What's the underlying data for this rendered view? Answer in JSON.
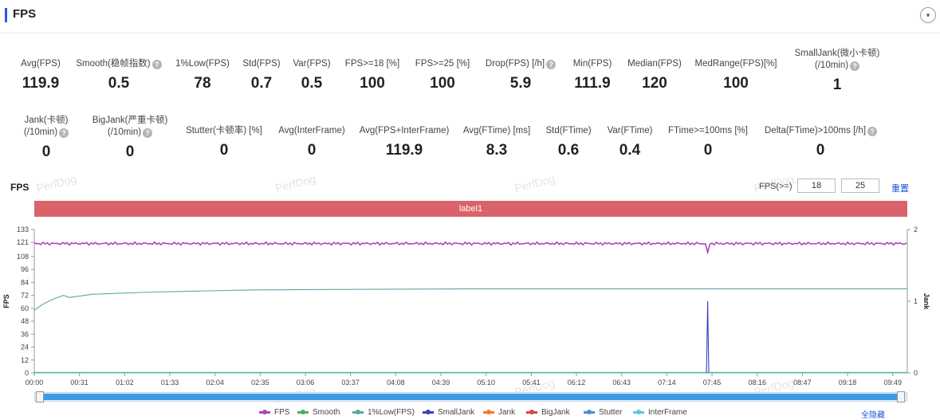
{
  "header": {
    "title": "FPS",
    "collapse_icon": "▾"
  },
  "metrics_row1": [
    {
      "label": "Avg(FPS)",
      "value": "119.9",
      "help": false
    },
    {
      "label": "Smooth(稳帧指数)",
      "value": "0.5",
      "help": true
    },
    {
      "label": "1%Low(FPS)",
      "value": "78",
      "help": false
    },
    {
      "label": "Std(FPS)",
      "value": "0.7",
      "help": false
    },
    {
      "label": "Var(FPS)",
      "value": "0.5",
      "help": false
    },
    {
      "label": "FPS>=18 [%]",
      "value": "100",
      "help": false
    },
    {
      "label": "FPS>=25 [%]",
      "value": "100",
      "help": false
    },
    {
      "label": "Drop(FPS) [/h]",
      "value": "5.9",
      "help": true
    },
    {
      "label": "Min(FPS)",
      "value": "111.9",
      "help": false
    },
    {
      "label": "Median(FPS)",
      "value": "120",
      "help": false
    },
    {
      "label": "MedRange(FPS)[%]",
      "value": "100",
      "help": false
    },
    {
      "label": "SmallJank(微小卡顿)",
      "label2": "(/10min)",
      "value": "1",
      "help": true
    }
  ],
  "metrics_row2": [
    {
      "label": "Jank(卡顿)",
      "label2": "(/10min)",
      "value": "0",
      "help": true
    },
    {
      "label": "BigJank(严重卡顿)",
      "label2": "(/10min)",
      "value": "0",
      "help": true
    },
    {
      "label": "Stutter(卡顿率) [%]",
      "value": "0",
      "help": false
    },
    {
      "label": "Avg(InterFrame)",
      "value": "0",
      "help": false
    },
    {
      "label": "Avg(FPS+InterFrame)",
      "value": "119.9",
      "help": false
    },
    {
      "label": "Avg(FTime) [ms]",
      "value": "8.3",
      "help": false
    },
    {
      "label": "Std(FTime)",
      "value": "0.6",
      "help": false
    },
    {
      "label": "Var(FTime)",
      "value": "0.4",
      "help": false
    },
    {
      "label": "FTime>=100ms [%]",
      "value": "0",
      "help": false
    },
    {
      "label": "Delta(FTime)>100ms [/h]",
      "value": "0",
      "help": true
    }
  ],
  "chart_panel": {
    "title": "FPS",
    "threshold_label": "FPS(>=)",
    "threshold_1": "18",
    "threshold_2": "25",
    "reset_label": "重置",
    "label_bar": "label1",
    "hide_all_label": "全隐藏",
    "watermark": "PerfDog"
  },
  "chart_data": {
    "type": "line",
    "ylabel": "FPS",
    "y2label": "Jank",
    "ylim": [
      0,
      133
    ],
    "yticks": [
      0,
      12,
      24,
      36,
      48,
      60,
      72,
      84,
      96,
      108,
      121,
      133
    ],
    "y2lim": [
      0,
      2
    ],
    "y2ticks": [
      0,
      1,
      2
    ],
    "xlim_seconds": [
      0,
      599
    ],
    "xticks": [
      "00:00",
      "00:31",
      "01:02",
      "01:33",
      "02:04",
      "02:35",
      "03:06",
      "03:37",
      "04:08",
      "04:39",
      "05:10",
      "05:41",
      "06:12",
      "06:43",
      "07:14",
      "07:45",
      "08:16",
      "08:47",
      "09:18",
      "09:49"
    ],
    "series": [
      {
        "name": "FPS",
        "color": "#b044b8",
        "axis": "left",
        "base": 120,
        "dip_at_seconds": 462,
        "dip_value": 111.9
      },
      {
        "name": "Smooth",
        "color": "#4fae5f",
        "axis": "left",
        "base": 0.5
      },
      {
        "name": "1%Low(FPS)",
        "color": "#5aa6a8",
        "axis": "left",
        "points": [
          [
            0,
            58
          ],
          [
            5,
            63
          ],
          [
            12,
            68
          ],
          [
            20,
            72
          ],
          [
            24,
            70
          ],
          [
            40,
            73
          ],
          [
            80,
            75
          ],
          [
            150,
            77
          ],
          [
            300,
            78
          ],
          [
            599,
            78
          ]
        ]
      },
      {
        "name": "SmallJank",
        "color": "#3b3fc4",
        "axis": "right",
        "spike_at_seconds": 462,
        "spike_value": 1
      },
      {
        "name": "Jank",
        "color": "#f07a32",
        "axis": "right",
        "base": 0
      },
      {
        "name": "BigJank",
        "color": "#d6434e",
        "axis": "right",
        "base": 0
      },
      {
        "name": "Stutter",
        "color": "#4a8fd4",
        "axis": "left",
        "base": 0
      },
      {
        "name": "InterFrame",
        "color": "#5cc6e0",
        "axis": "left",
        "base": 0
      }
    ],
    "legend_position": "bottom"
  }
}
